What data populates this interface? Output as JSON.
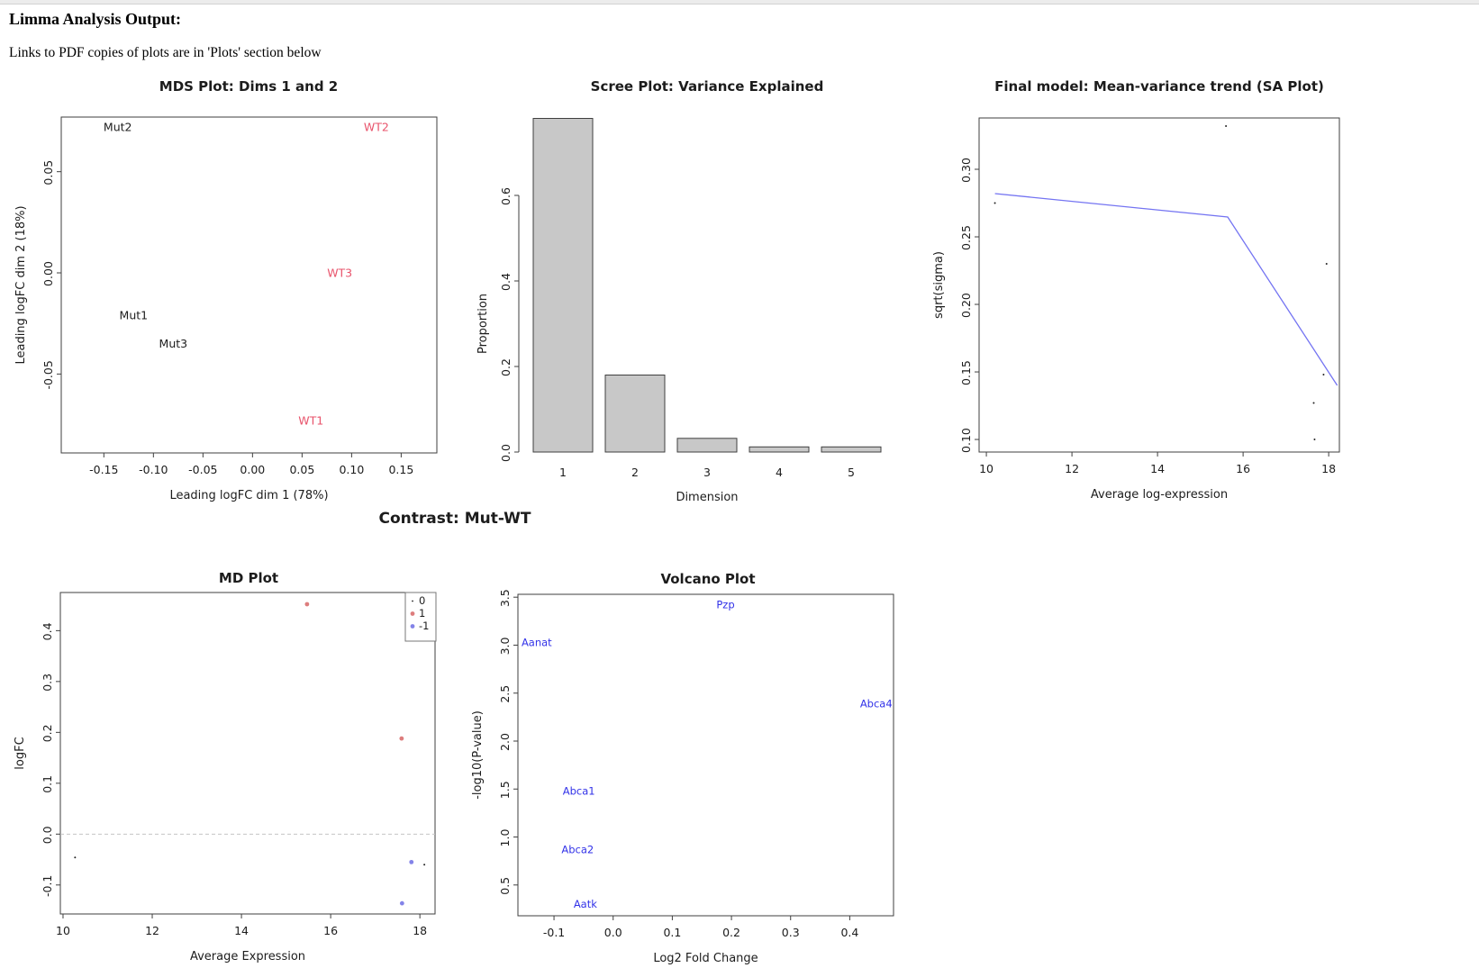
{
  "page": {
    "title": "Limma Analysis Output:",
    "subtitle": "Links to PDF copies of plots are in 'Plots' section below",
    "contrast_heading": "Contrast: Mut-WT"
  },
  "colors": {
    "text": "#1c1c1c",
    "axis": "#3f3f3f",
    "wt_label": "#e8536b",
    "mut_label": "#1c1c1c",
    "volcano_text": "#3232e8",
    "trend_line": "#7474f2",
    "up_point": "#dd7d7d",
    "down_point": "#8383e8",
    "neutral_point": "#222222",
    "bar_fill": "#c8c8c8",
    "bar_edge": "#3f3f3f",
    "zero_line": "#c4c4c4",
    "legend_border": "#777777"
  },
  "chart_data": [
    {
      "id": "mds",
      "type": "scatter",
      "title": "MDS Plot: Dims 1 and 2",
      "xlabel": "Leading logFC dim 1 (78%)",
      "ylabel": "Leading logFC dim 2 (18%)",
      "xlim": [
        -0.193,
        0.186
      ],
      "ylim": [
        -0.089,
        0.077
      ],
      "xticks": [
        "-0.15",
        "-0.10",
        "-0.05",
        "0.00",
        "0.05",
        "0.10",
        "0.15"
      ],
      "yticks": [
        "-0.05",
        "0.00",
        "0.05"
      ],
      "texts": [
        {
          "label": "Mut2",
          "x": -0.136,
          "y": 0.072,
          "color": "mut"
        },
        {
          "label": "WT2",
          "x": 0.125,
          "y": 0.072,
          "color": "wt"
        },
        {
          "label": "WT3",
          "x": 0.088,
          "y": 0.0,
          "color": "wt"
        },
        {
          "label": "Mut1",
          "x": -0.12,
          "y": -0.021,
          "color": "mut"
        },
        {
          "label": "Mut3",
          "x": -0.08,
          "y": -0.035,
          "color": "mut"
        },
        {
          "label": "WT1",
          "x": 0.059,
          "y": -0.073,
          "color": "wt"
        }
      ]
    },
    {
      "id": "scree",
      "type": "bar",
      "title": "Scree Plot: Variance Explained",
      "xlabel": "Dimension",
      "ylabel": "Proportion",
      "categories": [
        "1",
        "2",
        "3",
        "4",
        "5"
      ],
      "values": [
        0.78,
        0.18,
        0.032,
        0.012,
        0.012
      ],
      "ylim": [
        0,
        0.78
      ],
      "yticks": [
        "0.0",
        "0.2",
        "0.4",
        "0.6"
      ]
    },
    {
      "id": "sa",
      "type": "line",
      "title": "Final model: Mean-variance trend (SA Plot)",
      "xlabel": "Average log-expression",
      "ylabel": "sqrt(sigma)",
      "xlim": [
        9.83,
        18.25
      ],
      "ylim": [
        0.0907,
        0.338
      ],
      "xticks": [
        "10",
        "12",
        "14",
        "16",
        "18"
      ],
      "yticks": [
        "0.10",
        "0.15",
        "0.20",
        "0.25",
        "0.30"
      ],
      "line": [
        [
          10.2,
          0.282
        ],
        [
          15.64,
          0.2647
        ],
        [
          18.2,
          0.14
        ]
      ],
      "points": [
        [
          10.2,
          0.275
        ],
        [
          15.6,
          0.332
        ],
        [
          17.95,
          0.23
        ],
        [
          17.88,
          0.148
        ],
        [
          17.65,
          0.127
        ],
        [
          17.67,
          0.1
        ]
      ]
    },
    {
      "id": "md",
      "type": "scatter",
      "title": "MD Plot",
      "xlabel": "Average Expression",
      "ylabel": "logFC",
      "xlim": [
        9.94,
        18.34
      ],
      "ylim": [
        -0.157,
        0.475
      ],
      "xticks": [
        "10",
        "12",
        "14",
        "16",
        "18"
      ],
      "yticks": [
        "-0.1",
        "0.0",
        "0.1",
        "0.2",
        "0.3",
        "0.4"
      ],
      "hline": 0,
      "points": [
        {
          "x": 15.47,
          "y": 0.452,
          "status": "up"
        },
        {
          "x": 17.59,
          "y": 0.188,
          "status": "up"
        },
        {
          "x": 10.27,
          "y": -0.046,
          "status": "neutral"
        },
        {
          "x": 17.81,
          "y": -0.055,
          "status": "down"
        },
        {
          "x": 18.1,
          "y": -0.06,
          "status": "neutral"
        },
        {
          "x": 17.6,
          "y": -0.136,
          "status": "down"
        }
      ],
      "legend": [
        {
          "label": "0",
          "status": "neutral"
        },
        {
          "label": "1",
          "status": "up"
        },
        {
          "label": "-1",
          "status": "down"
        }
      ]
    },
    {
      "id": "volcano",
      "type": "scatter",
      "title": "Volcano Plot",
      "xlabel": "Log2 Fold Change",
      "ylabel": "-log10(P-value)",
      "xlim": [
        -0.161,
        0.474
      ],
      "ylim": [
        0.179,
        3.53
      ],
      "xticks": [
        "-0.1",
        "0.0",
        "0.1",
        "0.2",
        "0.3",
        "0.4"
      ],
      "yticks": [
        "0.5",
        "1.0",
        "1.5",
        "2.0",
        "2.5",
        "3.0",
        "3.5"
      ],
      "texts": [
        {
          "label": "Pzp",
          "x": 0.19,
          "y": 3.42,
          "anchor": "middle"
        },
        {
          "label": "Aanat",
          "x": -0.155,
          "y": 3.03,
          "anchor": "start"
        },
        {
          "label": "Abca4",
          "x": 0.472,
          "y": 2.39,
          "anchor": "end"
        },
        {
          "label": "Abca1",
          "x": -0.058,
          "y": 1.48,
          "anchor": "middle"
        },
        {
          "label": "Abca2",
          "x": -0.06,
          "y": 0.87,
          "anchor": "middle"
        },
        {
          "label": "Aatk",
          "x": -0.047,
          "y": 0.3,
          "anchor": "middle"
        }
      ]
    }
  ]
}
